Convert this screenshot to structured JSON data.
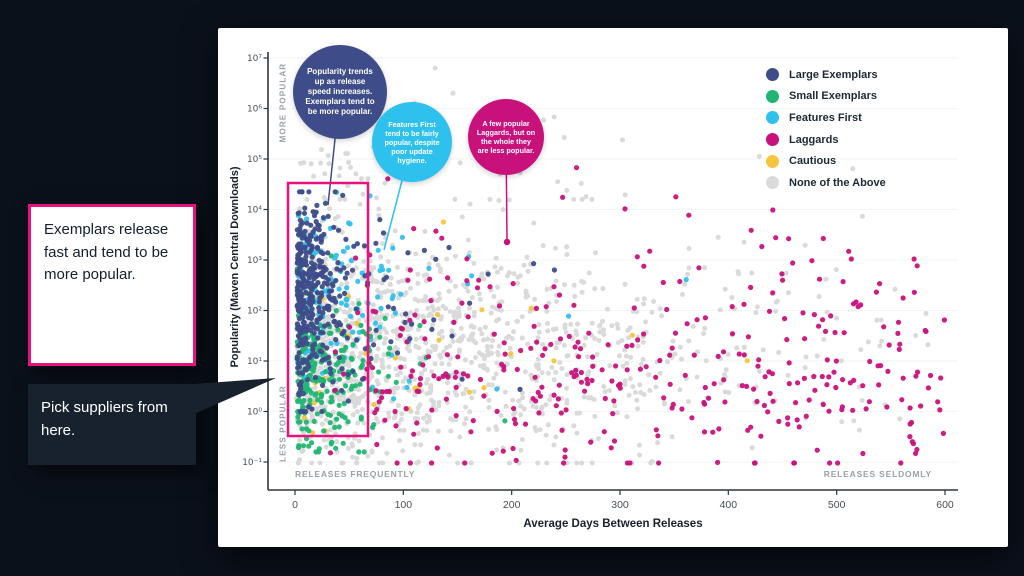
{
  "colors": {
    "accent_magenta": "#e8117d",
    "background": "#0b111b",
    "slide_background": "#ffffff"
  },
  "chart_data": {
    "type": "scatter",
    "title": "",
    "xlabel": "Average Days Between Releases",
    "ylabel": "Popularity (Maven Central Downloads)",
    "x_axis": {
      "min": 0,
      "max": 600,
      "ticks": [
        0,
        100,
        200,
        300,
        400,
        500,
        600
      ]
    },
    "y_axis": {
      "scale": "log10",
      "min_exp": -1,
      "max_exp": 7,
      "ticks": [
        {
          "exp": -1,
          "label": "10⁻¹"
        },
        {
          "exp": 0,
          "label": "10⁰"
        },
        {
          "exp": 1,
          "label": "10¹"
        },
        {
          "exp": 2,
          "label": "10²"
        },
        {
          "exp": 3,
          "label": "10³"
        },
        {
          "exp": 4,
          "label": "10⁴"
        },
        {
          "exp": 5,
          "label": "10⁵"
        },
        {
          "exp": 6,
          "label": "10⁶"
        },
        {
          "exp": 7,
          "label": "10⁷"
        }
      ]
    },
    "axis_annotations": {
      "more_popular": "MORE POPULAR",
      "less_popular": "LESS POPULAR",
      "releases_frequently": "RELEASES FREQUENTLY",
      "releases_seldomly": "RELEASES SELDOMLY"
    },
    "legend": [
      {
        "label": "Large Exemplars",
        "color": "#3e4d89"
      },
      {
        "label": "Small Exemplars",
        "color": "#21b573"
      },
      {
        "label": "Features First",
        "color": "#2fc1ee"
      },
      {
        "label": "Laggards",
        "color": "#c9117c"
      },
      {
        "label": "Cautious",
        "color": "#f5c53d"
      },
      {
        "label": "None of the Above",
        "color": "#dadada"
      }
    ],
    "series": [
      {
        "name": "None of the Above",
        "color": "#dadada",
        "count": 1250,
        "r": 2.5,
        "opacity": 1,
        "x": {
          "type": "exp",
          "min": 1,
          "scale": 150,
          "max": 598
        },
        "ylog": {
          "mean": 1.25,
          "sd": 1.15,
          "min": -1.02,
          "max": 4.7
        }
      },
      {
        "name": "None of the Above",
        "color": "#dadada",
        "count": 70,
        "r": 2.5,
        "opacity": 1,
        "x": {
          "type": "exp",
          "min": 2,
          "scale": 130,
          "max": 560
        },
        "ylog": {
          "mean": 5.1,
          "sd": 0.75,
          "min": 4.2,
          "max": 6.8
        }
      },
      {
        "name": "Cautious",
        "color": "#f5c53d",
        "count": 34,
        "r": 2.6,
        "opacity": 0.95,
        "x": {
          "type": "exp",
          "min": 3,
          "scale": 90,
          "max": 520
        },
        "ylog": {
          "mean": 1.3,
          "sd": 1.1,
          "min": -0.8,
          "max": 4.1
        }
      },
      {
        "name": "Features First",
        "color": "#2fc1ee",
        "count": 135,
        "r": 2.6,
        "opacity": 0.95,
        "x": {
          "type": "exp",
          "min": 2,
          "scale": 48,
          "max": 430
        },
        "ylog": {
          "mean": 2.1,
          "sd": 1.0,
          "min": -0.5,
          "max": 4.6
        }
      },
      {
        "name": "Small Exemplars",
        "color": "#21b573",
        "count": 240,
        "r": 2.6,
        "opacity": 0.95,
        "x": {
          "type": "exp",
          "min": 2,
          "scale": 26,
          "max": 340
        },
        "ylog": {
          "mean": 0.8,
          "sd": 0.75,
          "min": -0.8,
          "max": 3.3
        }
      },
      {
        "name": "Laggards",
        "color": "#c9117c",
        "count": 330,
        "r": 2.6,
        "opacity": 0.95,
        "x": {
          "type": "pow",
          "min": 25,
          "k": 0.8,
          "max": 600
        },
        "ylog": {
          "mean": 0.75,
          "sd": 1.0,
          "min": -1.02,
          "max": 3.1
        }
      },
      {
        "name": "Laggards",
        "color": "#c9117c",
        "count": 26,
        "r": 2.6,
        "opacity": 0.95,
        "x": {
          "type": "uniform",
          "min": 60,
          "max": 560
        },
        "ylog": {
          "mean": 3.6,
          "sd": 0.7,
          "min": 2.6,
          "max": 5.0
        }
      },
      {
        "name": "Large Exemplars",
        "color": "#3e4d89",
        "count": 380,
        "r": 2.6,
        "opacity": 0.95,
        "x": {
          "type": "exp",
          "min": 2,
          "scale": 15,
          "max": 150
        },
        "ylog": {
          "mean": 2.3,
          "sd": 0.95,
          "min": 0.0,
          "max": 4.35
        }
      },
      {
        "name": "Large Exemplars",
        "color": "#3e4d89",
        "count": 30,
        "r": 2.6,
        "opacity": 0.95,
        "x": {
          "type": "exp",
          "min": 60,
          "scale": 80,
          "max": 380
        },
        "ylog": {
          "mean": 2.2,
          "sd": 0.9,
          "min": 0.3,
          "max": 3.8
        }
      }
    ]
  },
  "callouts": {
    "bubble1": {
      "text": "Popularity trends up as release speed increases. Exemplars tend to be more popular.",
      "color": "#3e4d89"
    },
    "bubble2": {
      "text": "Features First tend to be fairly popular, despite poor update hygiene.",
      "color": "#2fc1ee"
    },
    "bubble3": {
      "text": "A few popular Laggards, but on the whole they are less popular.",
      "color": "#c9117c"
    }
  },
  "annotations": {
    "exemplars_note": "Exemplars release fast and tend to be more popular.",
    "pick_note": "Pick suppliers from here."
  }
}
